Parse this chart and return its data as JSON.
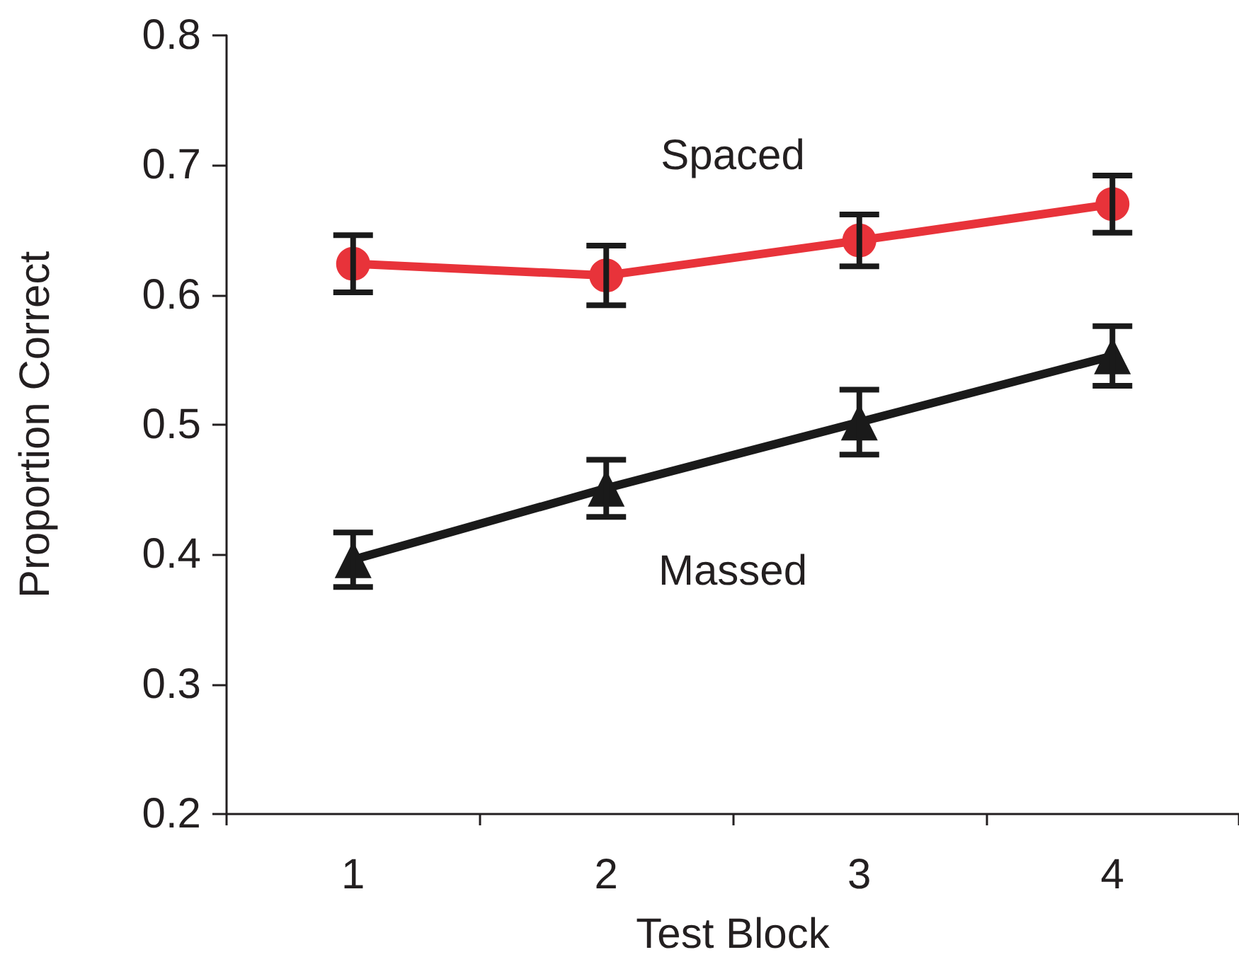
{
  "chart_data": {
    "type": "line",
    "xlabel": "Test Block",
    "ylabel": "Proportion Correct",
    "categories": [
      "1",
      "2",
      "3",
      "4"
    ],
    "series": [
      {
        "name": "Spaced",
        "color": "#e8333a",
        "marker": "circle",
        "values": [
          0.624,
          0.615,
          0.642,
          0.67
        ],
        "errors": [
          0.022,
          0.023,
          0.02,
          0.022
        ]
      },
      {
        "name": "Massed",
        "color": "#1a1a1a",
        "marker": "triangle",
        "values": [
          0.396,
          0.451,
          0.502,
          0.553
        ],
        "errors": [
          0.021,
          0.022,
          0.025,
          0.023
        ]
      }
    ],
    "ylim": [
      0.2,
      0.8
    ],
    "yticks": [
      0.2,
      0.3,
      0.4,
      0.5,
      0.6,
      0.7,
      0.8
    ],
    "grid": false,
    "legend": false
  }
}
